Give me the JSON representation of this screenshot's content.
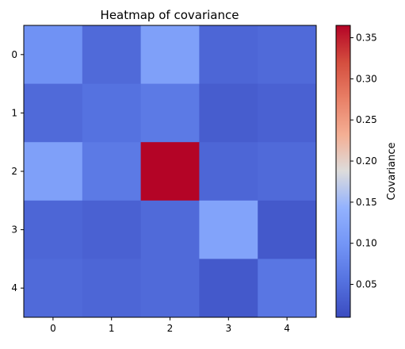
{
  "chart_data": {
    "type": "heatmap",
    "title": "Heatmap of covariance",
    "x_categories": [
      "0",
      "1",
      "2",
      "3",
      "4"
    ],
    "y_categories": [
      "0",
      "1",
      "2",
      "3",
      "4"
    ],
    "values": [
      [
        0.095,
        0.045,
        0.115,
        0.04,
        0.045
      ],
      [
        0.045,
        0.055,
        0.065,
        0.03,
        0.035
      ],
      [
        0.115,
        0.065,
        0.365,
        0.04,
        0.045
      ],
      [
        0.04,
        0.035,
        0.045,
        0.12,
        0.025
      ],
      [
        0.045,
        0.04,
        0.045,
        0.025,
        0.06
      ]
    ],
    "colormap": "coolwarm",
    "value_range": [
      0.01,
      0.365
    ],
    "colorbar": {
      "label": "Covariance",
      "ticks": [
        "0.05",
        "0.10",
        "0.15",
        "0.20",
        "0.25",
        "0.30",
        "0.35"
      ],
      "tick_values": [
        0.05,
        0.1,
        0.15,
        0.2,
        0.25,
        0.3,
        0.35
      ]
    },
    "grid": false
  }
}
